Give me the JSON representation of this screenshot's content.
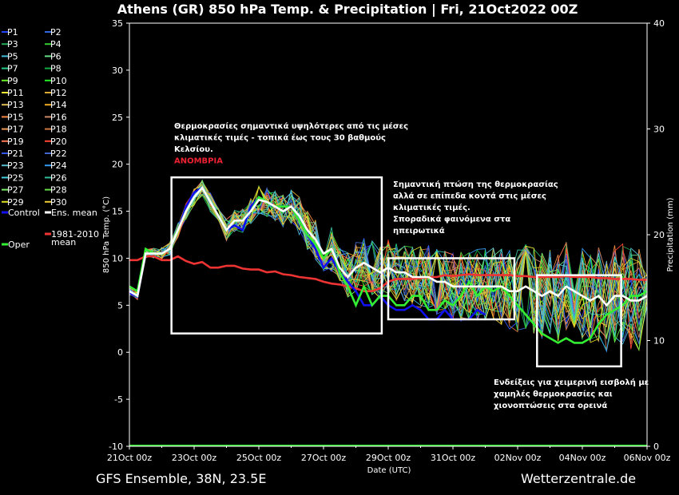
{
  "chart_data": {
    "type": "line",
    "title": "Athens  (GR)  850 hPa Temp. & Precipitation | Fri, 21Oct2022 00Z",
    "xlabel": "Date (UTC)",
    "ylabel": "850 hPa Temp. (°C)",
    "y2label": "Precipitation (mm)",
    "ylim": [
      -10,
      35
    ],
    "y2lim": [
      0,
      40
    ],
    "x_tick_labels": [
      "21Oct 00z",
      "23Oct 00z",
      "25Oct 00z",
      "27Oct 00z",
      "29Oct 00z",
      "31Oct 00z",
      "02Nov 00z",
      "04Nov 00z",
      "06Nov 00z"
    ],
    "y_ticks": [
      -10,
      -5,
      0,
      5,
      10,
      15,
      20,
      25,
      30,
      35
    ],
    "y2_ticks": [
      0,
      10,
      20,
      30,
      40
    ],
    "grid": false,
    "legend_members": [
      "P1",
      "P2",
      "P3",
      "P4",
      "P5",
      "P6",
      "P7",
      "P8",
      "P9",
      "P10",
      "P11",
      "P12",
      "P13",
      "P14",
      "P15",
      "P16",
      "P17",
      "P18",
      "P19",
      "P20",
      "P21",
      "P22",
      "P23",
      "P24",
      "P25",
      "P26",
      "P27",
      "P28",
      "P29",
      "P30"
    ],
    "member_colors": [
      "#2244ff",
      "#3366dd",
      "#22aa55",
      "#33cc33",
      "#44bbdd",
      "#66dd88",
      "#22cc88",
      "#11aa44",
      "#66ee22",
      "#22ee22",
      "#eeee33",
      "#ddaa33",
      "#ddbb55",
      "#eeaa22",
      "#ee8844",
      "#cc8866",
      "#ee9955",
      "#cc7744",
      "#ff7755",
      "#ff4433",
      "#3355ee",
      "#4466cc",
      "#55bbcc",
      "#3399ee",
      "#44ccdd",
      "#33bb99",
      "#77ee66",
      "#66dd44",
      "#dddd22",
      "#eecc33"
    ],
    "legend_special": [
      {
        "label": "Control",
        "color": "#1010ee"
      },
      {
        "label": "Ens. mean",
        "color": "#ffffff"
      },
      {
        "label": "1981-2010 mean",
        "color": "#ee3333"
      },
      {
        "label": "Oper",
        "color": "#33ee33"
      }
    ],
    "legend_climo_lines": [
      "1981-2010",
      "mean"
    ],
    "x_days": [
      0,
      0.25,
      0.5,
      0.75,
      1,
      1.25,
      1.5,
      1.75,
      2,
      2.25,
      2.5,
      2.75,
      3,
      3.25,
      3.5,
      3.75,
      4,
      4.25,
      4.5,
      4.75,
      5,
      5.25,
      5.5,
      5.75,
      6,
      6.25,
      6.5,
      6.75,
      7,
      7.25,
      7.5,
      7.75,
      8,
      8.25,
      8.5,
      8.75,
      9,
      9.25,
      9.5,
      9.75,
      10,
      10.25,
      10.5,
      10.75,
      11,
      11.25,
      11.5,
      11.75,
      12,
      12.25,
      12.5,
      12.75,
      13,
      13.25,
      13.5,
      13.75,
      14,
      14.25,
      14.5,
      14.75,
      15,
      15.25,
      15.5,
      15.75,
      16
    ],
    "series": [
      {
        "name": "Ens. mean",
        "values": [
          6.5,
          6,
          10.5,
          10.5,
          10.5,
          11,
          13,
          15,
          16.5,
          17.5,
          16,
          14.5,
          13,
          14,
          14,
          15,
          16.2,
          16,
          15.5,
          15,
          15.5,
          14.5,
          13,
          12,
          10.5,
          11,
          9,
          8,
          9,
          9.5,
          9,
          8.5,
          9,
          8.5,
          8.5,
          8,
          8,
          8,
          7.5,
          7.5,
          7,
          7,
          7,
          7,
          7,
          7,
          7,
          6.5,
          6.5,
          7,
          6.5,
          6,
          6.5,
          6,
          7,
          6.5,
          6,
          5.5,
          6,
          5,
          6,
          6,
          5.5,
          5.5,
          6
        ]
      },
      {
        "name": "Control",
        "values": [
          6.3,
          6,
          10.5,
          10.5,
          10.5,
          11,
          13,
          15.5,
          17,
          17.5,
          16,
          14.5,
          13,
          13.5,
          13,
          15.5,
          16.5,
          16,
          15.5,
          15.5,
          15.5,
          14,
          12.5,
          11,
          9,
          10,
          8.5,
          7.5,
          6.5,
          5,
          5,
          6,
          5,
          4.5,
          4.5,
          5,
          4.5,
          3.5,
          3.5,
          4.5,
          3.5,
          3.5,
          3.5,
          4.5,
          4,
          null,
          null,
          null,
          null,
          null,
          null,
          null,
          null,
          null,
          null,
          null,
          null,
          null,
          null,
          null,
          null,
          null,
          null,
          null,
          null
        ]
      },
      {
        "name": "Oper",
        "values": [
          7,
          6.5,
          11,
          10.5,
          10.5,
          11,
          13,
          15,
          16.5,
          17.5,
          16,
          14.5,
          13,
          14,
          14,
          15,
          16.5,
          16,
          15.5,
          15.5,
          15.5,
          14,
          12.5,
          11.5,
          10,
          11,
          8.5,
          7,
          5,
          7,
          5,
          6,
          6,
          5,
          5,
          6,
          6,
          4.5,
          4.5,
          5.5,
          5,
          6,
          7.5,
          6,
          7,
          6.5,
          7,
          6,
          5,
          4,
          3,
          2,
          1.5,
          1,
          1.5,
          1,
          1,
          1.5,
          3,
          4,
          4.5,
          5,
          6,
          6,
          6.5
        ]
      },
      {
        "name": "1981-2010 mean",
        "values": [
          9.8,
          9.8,
          10.2,
          10.2,
          9.8,
          9.8,
          10.2,
          9.7,
          9.4,
          9.6,
          9,
          9,
          9.2,
          9.2,
          8.9,
          8.8,
          8.8,
          8.5,
          8.6,
          8.3,
          8.2,
          8,
          7.9,
          7.8,
          7.5,
          7.3,
          7.2,
          7,
          6.8,
          6.5,
          6.5,
          6.8,
          7.5,
          7.8,
          7.8,
          7.8,
          7.9,
          8,
          8,
          8.2,
          8.1,
          8.2,
          8.3,
          8.2,
          8.2,
          8.2,
          8.2,
          8.2,
          8.1,
          8.1,
          8,
          8,
          8,
          8,
          8.1,
          8,
          8,
          8,
          7.9,
          7.9,
          7.8,
          7.8,
          7.8,
          7.7,
          7.7
        ]
      }
    ],
    "precip_series": {
      "name": "Oper precipitation",
      "values": [
        0,
        0,
        0,
        0,
        0,
        0,
        0,
        0,
        0,
        0,
        0,
        0,
        0,
        0,
        0,
        0,
        0,
        0,
        0,
        0,
        0,
        0,
        0,
        0,
        0,
        0,
        0,
        0,
        0,
        0,
        0,
        0,
        0,
        0,
        0,
        0,
        0,
        0,
        0,
        0,
        0,
        0,
        0,
        0,
        0,
        0,
        0,
        0,
        0,
        0,
        0,
        0,
        0,
        0,
        0,
        0,
        0,
        0,
        0,
        0,
        0,
        0,
        0,
        0,
        0
      ]
    },
    "annotations": [
      {
        "lines": [
          "Θερμοκρασίες σημαντικά υψηλότερες από τις μέσες",
          "κλιματικές τιμές - τοπικά έως τους 30 βαθμούς",
          "Κελσίου."
        ],
        "highlight": "ΑΝΟΜΒΡΙΑ"
      },
      {
        "lines": [
          "Σημαντική πτώση της θερμοκρασίας",
          "αλλά σε επίπεδα κοντά στις μέσες",
          "κλιματικές τιμές.",
          "Σποραδικά φαινόμενα στα",
          "ηπειρωτικά"
        ]
      },
      {
        "lines": [
          "Ενδείξεις για χειμερινή εισβολή με",
          "χαμηλές θερμοκρασίες και",
          "χιονοπτώσεις στα ορεινά"
        ]
      }
    ],
    "highlight_color": "#ee2233"
  },
  "footer": {
    "left": "GFS Ensemble, 38N, 23.5E",
    "right": "Wetterzentrale.de"
  }
}
